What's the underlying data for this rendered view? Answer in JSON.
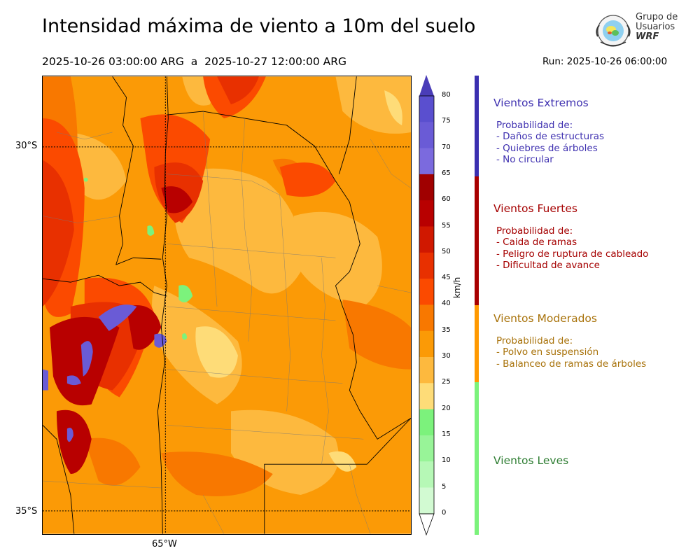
{
  "title": "Intensidad máxima de viento a 10m del suelo",
  "period": "2025-10-26 03:00:00 ARG  a  2025-10-27 12:00:00 ARG",
  "run": "Run: 2025-10-26 06:00:00",
  "logo": {
    "line1": "Grupo de",
    "line2": "Usuarios",
    "line3": "WRF"
  },
  "map": {
    "lat_labels": [
      "30°S",
      "35°S"
    ],
    "lon_labels": [
      "65°W"
    ]
  },
  "colorbar": {
    "unit": "km/h",
    "ticks": [
      "80",
      "75",
      "70",
      "65",
      "60",
      "55",
      "50",
      "45",
      "40",
      "35",
      "30",
      "25",
      "20",
      "15",
      "10",
      "5",
      "0"
    ],
    "colors": [
      "#5a4fcf",
      "#6a5bd6",
      "#7b6ade",
      "#a00000",
      "#b80000",
      "#d01800",
      "#e83000",
      "#fb4a00",
      "#f87800",
      "#fb9a06",
      "#fdb93e",
      "#fedc78",
      "#7cf27c",
      "#98f498",
      "#b6f8b6",
      "#d2fad2",
      "#eafdea"
    ],
    "top_arrow_color": "#4a3db8"
  },
  "categories": [
    {
      "title": "Vientos Extremos",
      "color": "#3f31b0",
      "lines": [
        "Probabilidad de:",
        "- Daños de estructuras",
        "- Quiebres de árboles",
        "- No circular"
      ]
    },
    {
      "title": "Vientos Fuertes",
      "color": "#a50000",
      "lines": [
        "Probabilidad de:",
        "- Caida de ramas",
        "- Peligro de ruptura de cableado",
        "- Dificultad de avance"
      ]
    },
    {
      "title": "Vientos Moderados",
      "color": "#a8720a",
      "lines": [
        "Probabilidad de:",
        "- Polvo en suspensión",
        "- Balanceo de ramas de árboles"
      ]
    },
    {
      "title": "Vientos Leves",
      "color": "#2e7d32",
      "lines": []
    }
  ],
  "bar_colors": {
    "extremos": "#3b2fb0",
    "fuertes": "#a80000",
    "moderados": "#ff9900",
    "leves": "#7bf27b"
  }
}
